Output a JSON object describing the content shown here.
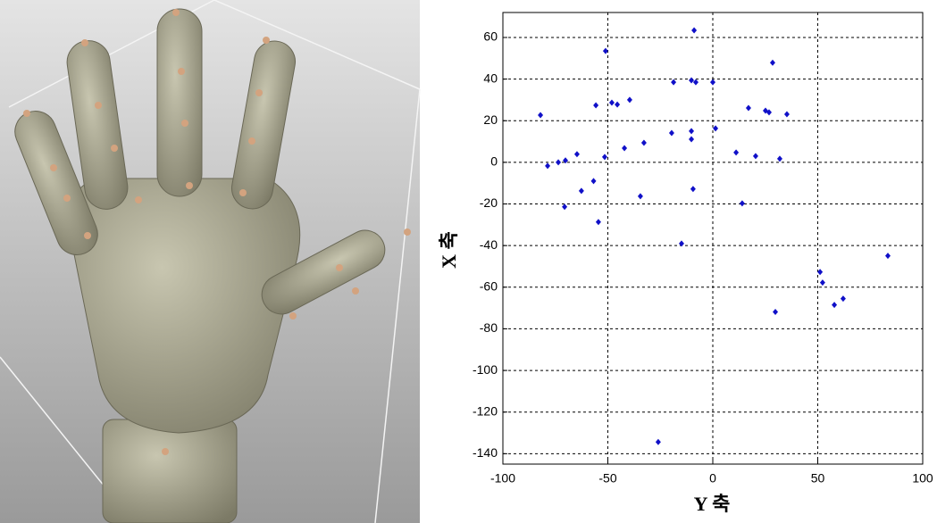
{
  "chart_data": {
    "type": "scatter",
    "xlabel": "Y 축",
    "ylabel": "X 축",
    "color": "#1010c8",
    "grid": true,
    "xlim": [
      -100,
      100
    ],
    "ylim": [
      -145,
      72
    ],
    "xticks": [
      -100,
      -50,
      0,
      50,
      100
    ],
    "yticks": [
      -140,
      -120,
      -100,
      -80,
      -60,
      -40,
      -20,
      0,
      20,
      40,
      60
    ],
    "x": [
      -82.1,
      -78.7,
      -73.6,
      -70.2,
      -64.7,
      -70.6,
      -62.6,
      -56.8,
      -55.7,
      -54.5,
      -51.5,
      -51.1,
      -48.1,
      -45.5,
      -42.1,
      -39.6,
      -34.5,
      -32.8,
      -26.0,
      -18.7,
      -19.6,
      -14.9,
      -10.2,
      -10.2,
      -10.2,
      -8.9,
      -8.1,
      -9.4,
      0,
      1.3,
      11.1,
      14.0,
      17.0,
      20.4,
      25.1,
      26.8,
      28.5,
      29.8,
      31.9,
      35.3,
      51.1,
      52.3,
      57.9,
      62.1,
      83.4
    ],
    "values": [
      22.7,
      -1.7,
      0,
      0.9,
      3.9,
      -21.4,
      -13.7,
      -9.0,
      27.4,
      -28.7,
      2.6,
      53.5,
      28.7,
      27.8,
      6.8,
      30.0,
      -16.3,
      9.4,
      -134.4,
      38.5,
      14.1,
      -39.0,
      15.0,
      11.1,
      39.4,
      63.4,
      38.5,
      -12.8,
      38.5,
      16.3,
      4.7,
      -19.7,
      26.1,
      3.0,
      24.8,
      24.0,
      47.9,
      -71.9,
      1.7,
      23.1,
      -52.7,
      -57.8,
      -68.5,
      -65.5,
      -44.9
    ]
  }
}
